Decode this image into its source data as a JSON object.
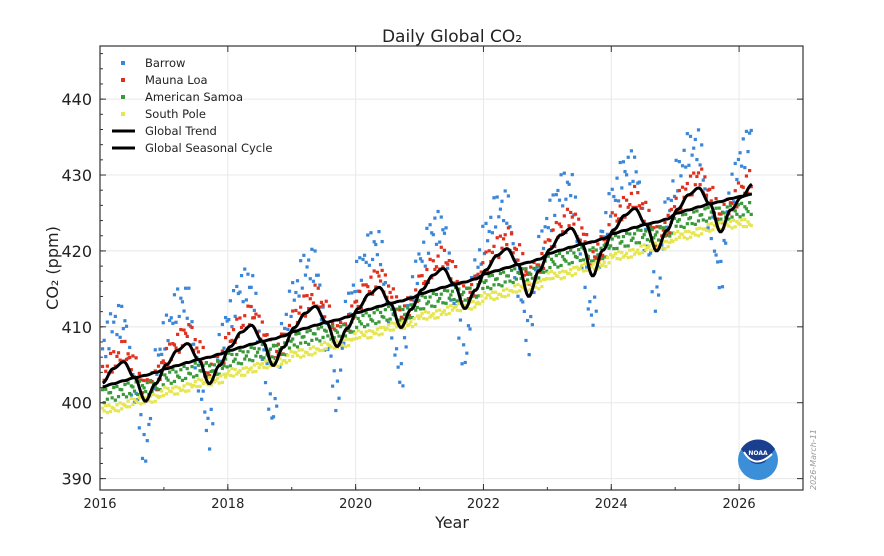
{
  "chart_data": {
    "type": "scatter",
    "title": "Daily Global CO₂",
    "xlabel": "Year",
    "ylabel": "CO₂ (ppm)",
    "xlim": [
      2016,
      2027
    ],
    "ylim": [
      388.5,
      447
    ],
    "xticks": [
      "2016",
      "2018",
      "2020",
      "2022",
      "2024",
      "2026"
    ],
    "yticks": [
      "390",
      "400",
      "410",
      "420",
      "430",
      "440"
    ],
    "grid": true,
    "legend": "top-left",
    "x": [
      2016.04,
      2016.21,
      2016.37,
      2016.54,
      2016.71,
      2016.87,
      2017.04,
      2017.21,
      2017.37,
      2017.54,
      2017.71,
      2017.87,
      2018.04,
      2018.21,
      2018.37,
      2018.54,
      2018.71,
      2018.87,
      2019.04,
      2019.21,
      2019.37,
      2019.54,
      2019.71,
      2019.87,
      2020.04,
      2020.21,
      2020.37,
      2020.54,
      2020.71,
      2020.87,
      2021.04,
      2021.21,
      2021.37,
      2021.54,
      2021.71,
      2021.87,
      2022.04,
      2022.21,
      2022.37,
      2022.54,
      2022.71,
      2022.87,
      2023.04,
      2023.21,
      2023.37,
      2023.54,
      2023.71,
      2023.87,
      2024.04,
      2024.21,
      2024.37,
      2024.54,
      2024.71,
      2024.87,
      2025.04,
      2025.21,
      2025.37,
      2025.54,
      2025.71,
      2025.87,
      2026.04,
      2026.21
    ],
    "series": [
      {
        "name": "Barrow",
        "kind": "scatter",
        "color": "#3a86d8",
        "values": [
          407.1,
          410.5,
          410.9,
          401.3,
          393.6,
          405.0,
          409.5,
          412.9,
          413.3,
          403.7,
          396.0,
          407.4,
          411.9,
          415.3,
          415.7,
          406.1,
          398.4,
          409.8,
          414.4,
          417.8,
          418.2,
          408.6,
          400.9,
          412.3,
          416.9,
          420.3,
          420.7,
          411.1,
          403.4,
          414.8,
          419.4,
          422.8,
          423.2,
          413.6,
          405.9,
          417.3,
          422.0,
          425.4,
          425.8,
          416.2,
          408.5,
          419.9,
          424.7,
          428.1,
          428.5,
          418.9,
          411.2,
          422.6,
          427.3,
          430.7,
          431.1,
          421.5,
          413.8,
          425.2,
          430.0,
          433.4,
          433.8,
          424.2,
          416.5,
          427.9,
          432.6,
          435.5
        ]
      },
      {
        "name": "Mauna Loa",
        "kind": "scatter",
        "color": "#e0301e",
        "values": [
          403.6,
          405.5,
          406.9,
          404.8,
          401.6,
          403.0,
          406.0,
          407.9,
          409.3,
          407.2,
          404.0,
          405.4,
          408.4,
          410.3,
          411.7,
          409.6,
          406.4,
          407.8,
          410.9,
          412.8,
          414.2,
          412.1,
          408.9,
          410.3,
          413.4,
          415.3,
          416.7,
          414.6,
          411.4,
          412.8,
          415.9,
          417.8,
          419.2,
          417.1,
          413.9,
          415.3,
          418.5,
          420.4,
          421.8,
          419.7,
          416.5,
          417.9,
          421.2,
          423.1,
          424.5,
          422.4,
          419.2,
          420.6,
          423.8,
          425.7,
          427.1,
          425.0,
          421.8,
          423.2,
          426.5,
          428.4,
          429.8,
          427.7,
          424.5,
          425.9,
          428.1,
          429.5
        ]
      },
      {
        "name": "American Samoa",
        "kind": "scatter",
        "color": "#3a9a3a",
        "values": [
          400.9,
          401.2,
          401.6,
          402.0,
          401.9,
          402.2,
          403.3,
          403.6,
          404.0,
          404.4,
          404.3,
          404.6,
          405.7,
          406.0,
          406.4,
          406.8,
          406.7,
          407.0,
          408.2,
          408.5,
          408.9,
          409.3,
          409.2,
          409.5,
          410.7,
          411.0,
          411.4,
          411.8,
          411.7,
          412.0,
          413.2,
          413.5,
          413.9,
          414.3,
          414.2,
          414.5,
          415.8,
          416.1,
          416.5,
          416.9,
          416.8,
          417.1,
          418.5,
          418.8,
          419.2,
          419.6,
          419.5,
          419.8,
          421.1,
          421.4,
          421.8,
          422.2,
          422.1,
          422.4,
          423.8,
          424.1,
          424.5,
          424.9,
          424.8,
          425.1,
          425.4,
          425.7
        ]
      },
      {
        "name": "South Pole",
        "kind": "scatter",
        "color": "#e6e650",
        "values": [
          399.2,
          399.2,
          399.6,
          400.2,
          400.4,
          400.6,
          401.6,
          401.6,
          402.0,
          402.6,
          402.8,
          403.0,
          404.0,
          404.0,
          404.4,
          405.0,
          405.2,
          405.4,
          406.5,
          406.5,
          406.9,
          407.5,
          407.7,
          407.9,
          409.0,
          409.0,
          409.4,
          410.0,
          410.2,
          410.4,
          411.5,
          411.5,
          411.9,
          412.5,
          412.7,
          412.9,
          414.1,
          414.1,
          414.5,
          415.1,
          415.3,
          415.5,
          416.8,
          416.8,
          417.2,
          417.8,
          418.0,
          418.2,
          419.4,
          419.4,
          419.8,
          420.4,
          420.6,
          420.8,
          422.1,
          422.1,
          422.5,
          423.1,
          423.3,
          423.5,
          423.7,
          423.5
        ]
      },
      {
        "name": "Global Trend",
        "kind": "line",
        "color": "#000000",
        "values": [
          402.1,
          402.5,
          402.9,
          403.3,
          403.6,
          404.0,
          404.5,
          404.9,
          405.3,
          405.7,
          406.0,
          406.4,
          406.9,
          407.3,
          407.7,
          408.1,
          408.4,
          408.8,
          409.4,
          409.8,
          410.2,
          410.6,
          410.9,
          411.3,
          411.9,
          412.3,
          412.7,
          413.1,
          413.4,
          413.8,
          414.4,
          414.8,
          415.2,
          415.6,
          415.9,
          416.3,
          417.0,
          417.4,
          417.8,
          418.2,
          418.5,
          418.9,
          419.7,
          420.1,
          420.5,
          420.9,
          421.2,
          421.6,
          422.3,
          422.7,
          423.1,
          423.5,
          423.8,
          424.2,
          425.0,
          425.4,
          425.8,
          426.2,
          426.5,
          426.9,
          427.2,
          427.5
        ]
      },
      {
        "name": "Global Seasonal Cycle",
        "kind": "line",
        "color": "#000000",
        "values": [
          402.6,
          404.5,
          405.4,
          403.3,
          400.2,
          402.5,
          405.0,
          406.9,
          407.8,
          405.7,
          402.5,
          404.9,
          407.4,
          409.3,
          410.2,
          408.1,
          404.9,
          407.3,
          409.9,
          411.8,
          412.7,
          410.6,
          407.4,
          409.8,
          412.4,
          414.3,
          415.2,
          413.1,
          409.9,
          412.3,
          414.9,
          416.8,
          417.7,
          415.6,
          412.4,
          414.8,
          417.5,
          419.4,
          420.3,
          418.2,
          414.0,
          417.4,
          420.2,
          422.1,
          423.0,
          420.9,
          416.7,
          420.1,
          422.8,
          424.7,
          425.6,
          423.5,
          420.0,
          422.7,
          425.5,
          427.4,
          428.3,
          426.2,
          422.5,
          425.4,
          427.1,
          428.8
        ]
      }
    ]
  },
  "date_stamp": "2026-March-11",
  "logo": {
    "text": "NOAA",
    "colors": {
      "top": "#1a3f8f",
      "bottom": "#3b8fd9"
    }
  }
}
